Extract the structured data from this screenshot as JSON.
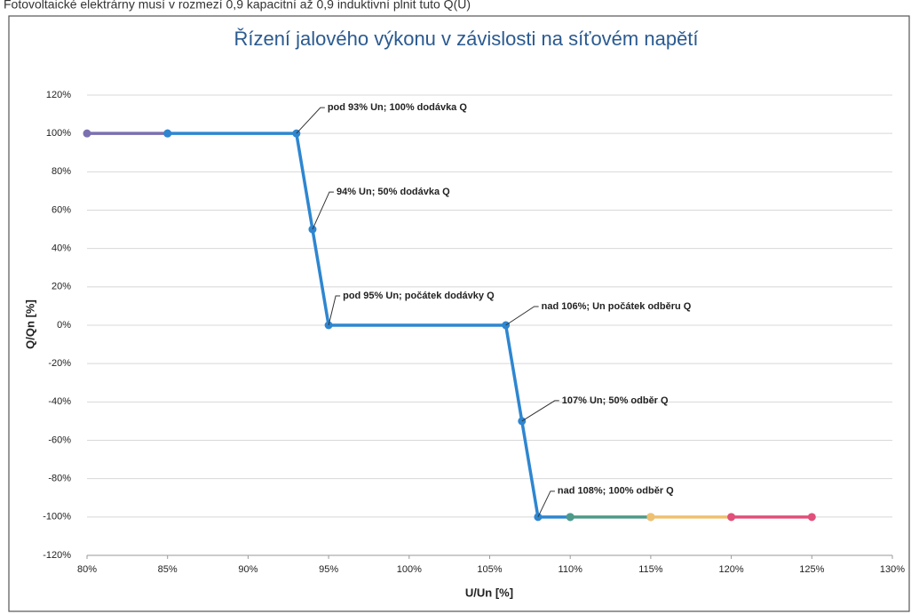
{
  "chart_data": {
    "type": "line",
    "caption": "Fotovoltaické elektrárny musí v rozmezí 0,9 kapacitní až 0,9 induktivní plnit tuto Q(U)",
    "title": "Řízení jalového výkonu v závislosti na síťovém napětí",
    "x_label": "U/Un [%]",
    "y_label": "Q/Qn [%]",
    "xlim": [
      80,
      130
    ],
    "ylim": [
      -120,
      120
    ],
    "xticks": [
      {
        "value": 80,
        "label": "80%"
      },
      {
        "value": 85,
        "label": "85%"
      },
      {
        "value": 90,
        "label": "90%"
      },
      {
        "value": 95,
        "label": "95%"
      },
      {
        "value": 100,
        "label": "100%"
      },
      {
        "value": 105,
        "label": "105%"
      },
      {
        "value": 110,
        "label": "110%"
      },
      {
        "value": 115,
        "label": "115%"
      },
      {
        "value": 120,
        "label": "120%"
      },
      {
        "value": 125,
        "label": "125%"
      },
      {
        "value": 130,
        "label": "130%"
      }
    ],
    "yticks": [
      {
        "value": -120,
        "label": "-120%"
      },
      {
        "value": -100,
        "label": "-100%"
      },
      {
        "value": -80,
        "label": "-80%"
      },
      {
        "value": -60,
        "label": "-60%"
      },
      {
        "value": -40,
        "label": "-40%"
      },
      {
        "value": -20,
        "label": "-20%"
      },
      {
        "value": 0,
        "label": "0%"
      },
      {
        "value": 20,
        "label": "20%"
      },
      {
        "value": 40,
        "label": "40%"
      },
      {
        "value": 60,
        "label": "60%"
      },
      {
        "value": 80,
        "label": "80%"
      },
      {
        "value": 100,
        "label": "100%"
      },
      {
        "value": 120,
        "label": "120%"
      }
    ],
    "grid": "y",
    "series": [
      {
        "color": "#7b6fb0",
        "x": [
          80,
          85
        ],
        "values": [
          100,
          100
        ]
      },
      {
        "color": "#2e86d0",
        "x": [
          85,
          93,
          94,
          95,
          106,
          107,
          108,
          110
        ],
        "values": [
          100,
          100,
          50,
          0,
          0,
          -50,
          -100,
          -100
        ]
      },
      {
        "color": "#4e9a8a",
        "x": [
          110,
          115
        ],
        "values": [
          -100,
          -100
        ]
      },
      {
        "color": "#f0c070",
        "x": [
          115,
          120
        ],
        "values": [
          -100,
          -100
        ]
      },
      {
        "color": "#e0507a",
        "x": [
          120,
          125
        ],
        "values": [
          -100,
          -100
        ]
      }
    ],
    "annotations": [
      {
        "text": "pod 93% Un; 100% dodávka Q",
        "x": 93,
        "y": 100
      },
      {
        "text": "94% Un; 50% dodávka Q",
        "x": 94,
        "y": 50
      },
      {
        "text": "pod 95% Un; počátek dodávky Q",
        "x": 95,
        "y": 0
      },
      {
        "text": "nad 106%; Un  počátek odběru Q",
        "x": 106,
        "y": 0
      },
      {
        "text": "107% Un;  50% odběr Q",
        "x": 107,
        "y": -50
      },
      {
        "text": "nad 108%; 100% odběr Q",
        "x": 108,
        "y": -100
      }
    ]
  }
}
